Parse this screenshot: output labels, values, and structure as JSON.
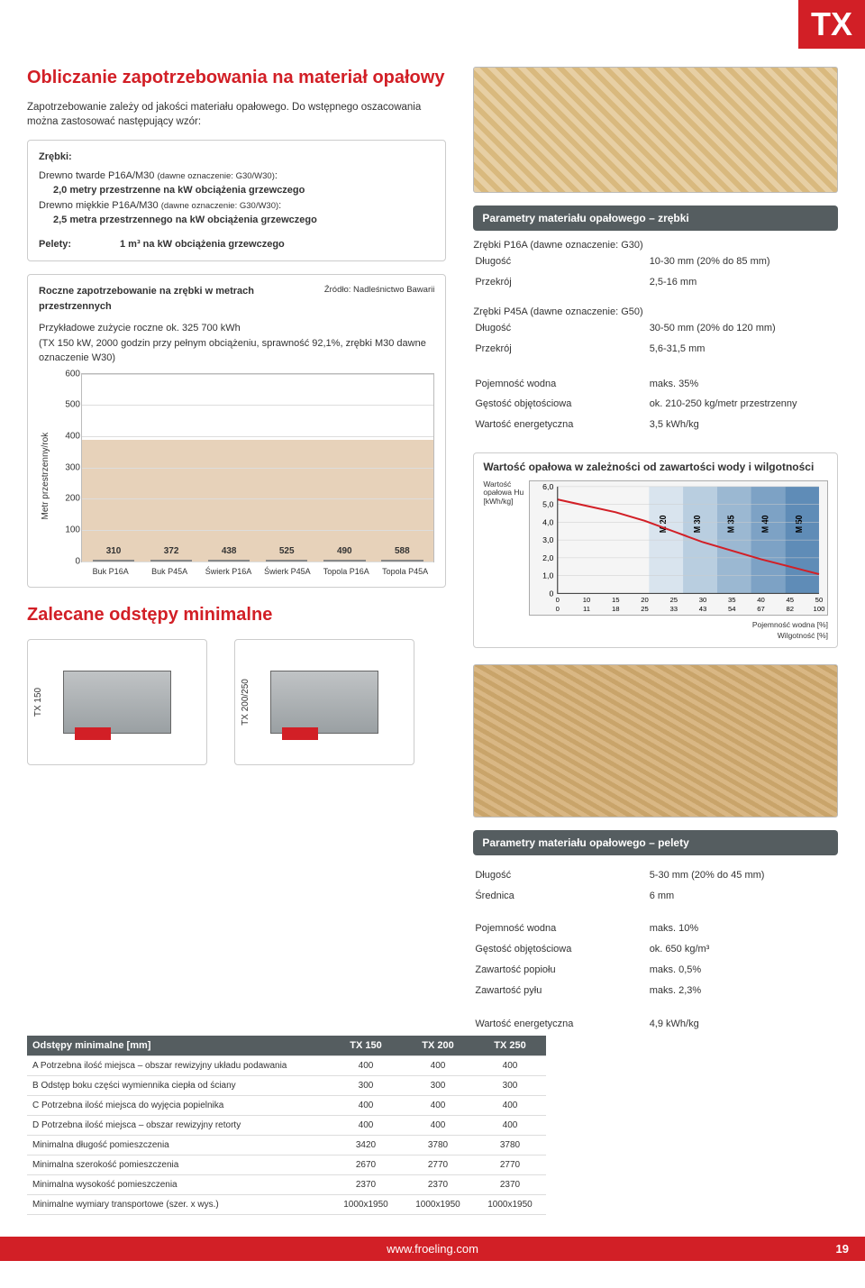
{
  "header": {
    "brand": "TX"
  },
  "left": {
    "title": "Obliczanie zapotrzebowania na materiał opałowy",
    "subtitle": "Zapotrzebowanie zależy od jakości materiału opałowego. Do wstępnego oszacowania można zastosować następujący wzór:",
    "box1": {
      "h1": "Zrębki:",
      "l1a": "Drewno twarde P16A/M30 ",
      "l1b": "(dawne oznaczenie: G30/W30)",
      "l1c": ":",
      "l2": "2,0 metry przestrzenne na kW obciążenia grzewczego",
      "l3a": "Drewno miękkie P16A/M30 ",
      "l3b": "(dawne oznaczenie: G30/W30)",
      "l3c": ":",
      "l4": "2,5 metra przestrzennego na kW obciążenia grzewczego",
      "pelety_lbl": "Pelety:",
      "pelety_val": "1 m³ na kW obciążenia grzewczego"
    },
    "box2": {
      "title": "Roczne zapotrzebowanie na zrębki w metrach przestrzennych",
      "source": "Źródło: Nadleśnictwo Bawarii",
      "note": "Przykładowe zużycie roczne ok. 325 700 kWh\n(TX 150 kW, 2000 godzin przy pełnym obciążeniu, sprawność 92,1%, zrębki M30 dawne oznaczenie W30)"
    },
    "bar_chart": {
      "y_label": "Metr przestrzenny/rok",
      "ylim": [
        0,
        600
      ],
      "ytick_step": 100,
      "bar_fill": "#ffffff",
      "bar_border": "#888888",
      "background": "#d7b48c",
      "categories": [
        "Buk P16A",
        "Buk P45A",
        "Świerk P16A",
        "Świerk P45A",
        "Topola P16A",
        "Topola P45A"
      ],
      "values": [
        310,
        372,
        438,
        525,
        490,
        588
      ]
    },
    "clearances_title": "Zalecane odstępy minimalne",
    "boiler_labels": [
      "TX 150",
      "TX 200/250"
    ]
  },
  "right": {
    "hdr1": "Parametry materiału opałowego – zrębki",
    "p16a": {
      "title": "Zrębki P16A (dawne oznaczenie: G30)",
      "rows": [
        [
          "Długość",
          "10-30 mm (20% do 85 mm)"
        ],
        [
          "Przekrój",
          "2,5-16 mm"
        ]
      ]
    },
    "p45a": {
      "title": "Zrębki P45A (dawne oznaczenie: G50)",
      "rows": [
        [
          "Długość",
          "30-50 mm (20% do 120 mm)"
        ],
        [
          "Przekrój",
          "5,6-31,5 mm"
        ]
      ]
    },
    "extra_rows": [
      [
        "Pojemność wodna",
        "maks. 35%"
      ],
      [
        "Gęstość objętościowa",
        "ok. 210-250 kg/metr przestrzenny"
      ],
      [
        "Wartość energetyczna",
        "3,5 kWh/kg"
      ]
    ],
    "line_chart": {
      "title": "Wartość opałowa w zależności od zawartości wody i wilgotności",
      "y_label": "Wartość\nopałowa Hu\n[kWh/kg]",
      "x_label_top": "Pojemność wodna [%]",
      "x_label_bot": "Wilgotność [%]",
      "yticks": [
        "6,0",
        "5,0",
        "4,0",
        "3,0",
        "2,0",
        "1,0",
        "0"
      ],
      "xticks_top": [
        "0",
        "10",
        "15",
        "20",
        "25",
        "30",
        "35",
        "40",
        "45",
        "50"
      ],
      "xticks_bot": [
        "0",
        "11",
        "18",
        "25",
        "33",
        "43",
        "54",
        "67",
        "82",
        "100"
      ],
      "band_labels": [
        "M 20",
        "M 30",
        "M 35",
        "M 40",
        "M 50"
      ],
      "band_colors": [
        "#d9e4ee",
        "#b9cee0",
        "#9bb8d2",
        "#7da2c5",
        "#5f8cb7"
      ],
      "line_color": "#d21f26"
    },
    "hdr2": "Parametry materiału opałowego – pelety",
    "pellet_rows1": [
      [
        "Długość",
        "5-30 mm (20% do 45 mm)"
      ],
      [
        "Średnica",
        "6 mm"
      ]
    ],
    "pellet_rows2": [
      [
        "Pojemność wodna",
        "maks. 10%"
      ],
      [
        "Gęstość objętościowa",
        "ok. 650 kg/m³"
      ],
      [
        "Zawartość popiołu",
        "maks. 0,5%"
      ],
      [
        "Zawartość pyłu",
        "maks. 2,3%"
      ]
    ],
    "pellet_rows3": [
      [
        "Wartość energetyczna",
        "4,9 kWh/kg"
      ]
    ]
  },
  "dist_table": {
    "header": [
      "Odstępy minimalne [mm]",
      "TX 150",
      "TX 200",
      "TX 250"
    ],
    "rows": [
      [
        "A Potrzebna ilość miejsca – obszar rewizyjny układu podawania",
        "400",
        "400",
        "400"
      ],
      [
        "B Odstęp boku części wymiennika ciepła od ściany",
        "300",
        "300",
        "300"
      ],
      [
        "C Potrzebna ilość miejsca do wyjęcia popielnika",
        "400",
        "400",
        "400"
      ],
      [
        "D Potrzebna ilość miejsca – obszar rewizyjny retorty",
        "400",
        "400",
        "400"
      ],
      [
        "Minimalna długość pomieszczenia",
        "3420",
        "3780",
        "3780"
      ],
      [
        "Minimalna szerokość pomieszczenia",
        "2670",
        "2770",
        "2770"
      ],
      [
        "Minimalna wysokość pomieszczenia",
        "2370",
        "2370",
        "2370"
      ],
      [
        "Minimalne wymiary transportowe (szer. x wys.)",
        "1000x1950",
        "1000x1950",
        "1000x1950"
      ]
    ]
  },
  "footer": {
    "url": "www.froeling.com",
    "page": "19"
  }
}
